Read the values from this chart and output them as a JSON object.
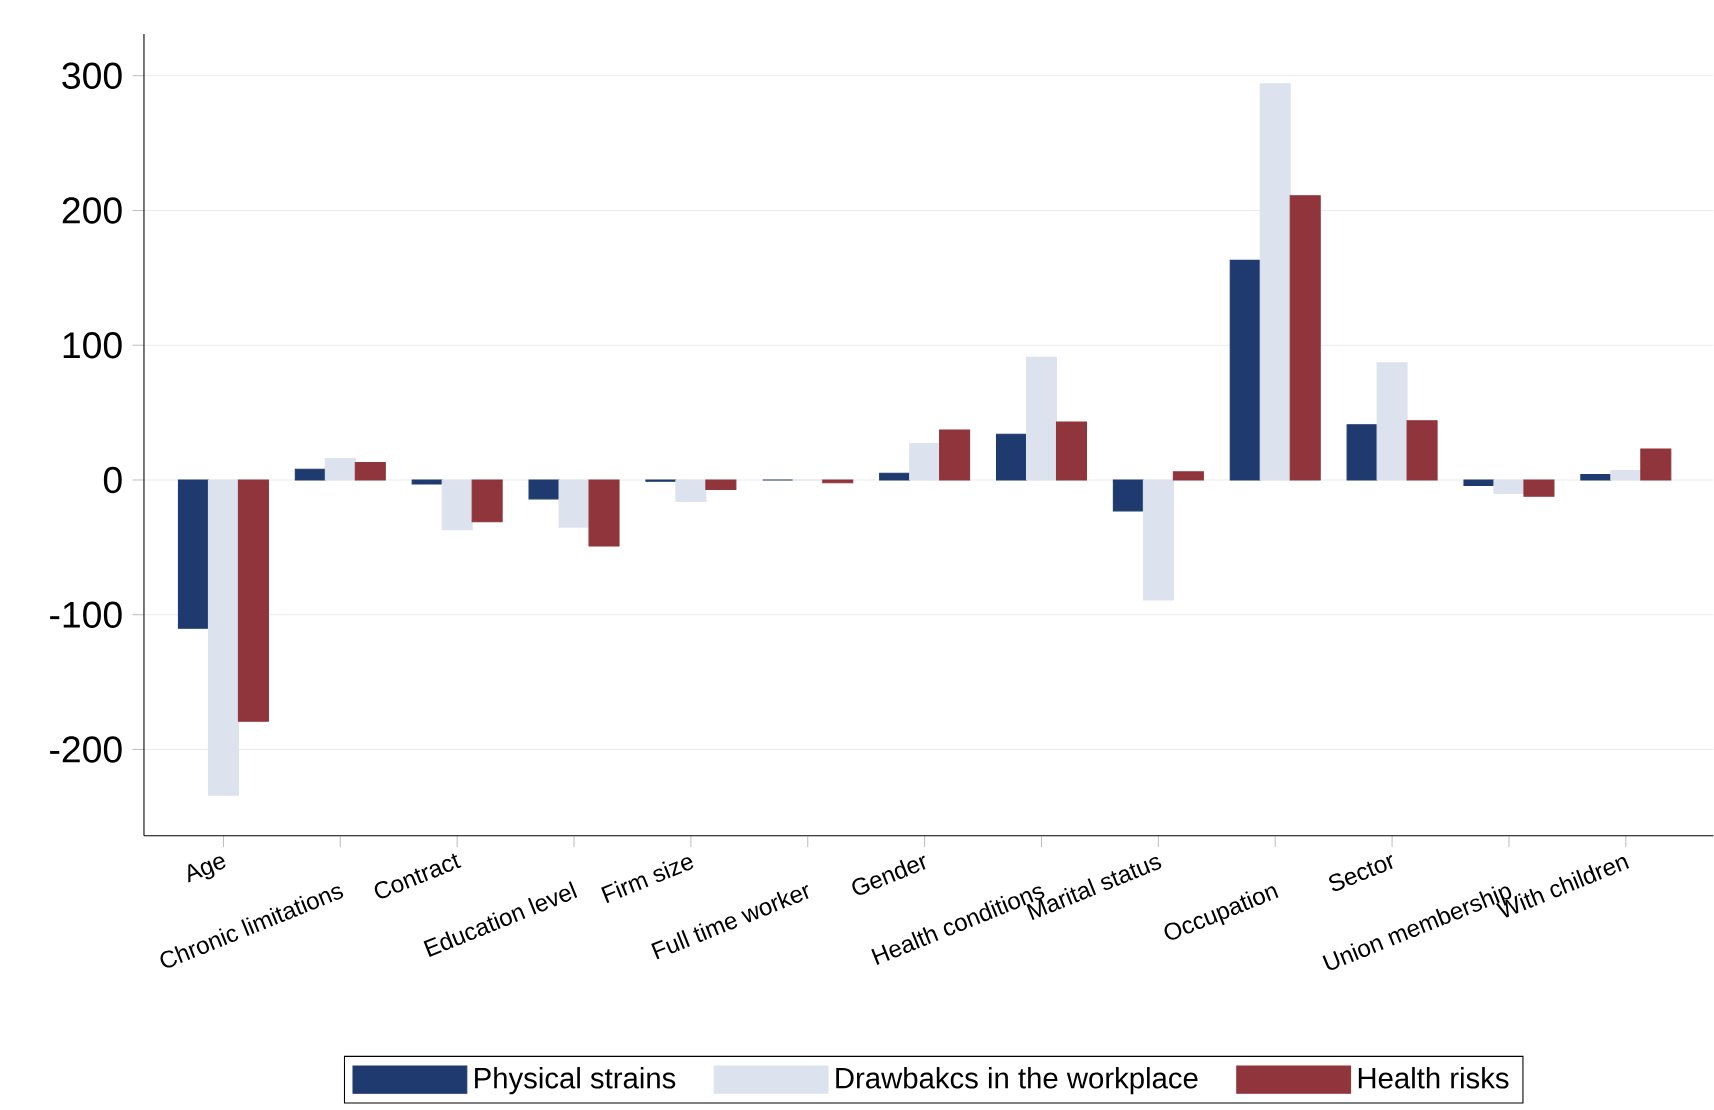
{
  "chart_data": {
    "type": "bar",
    "categories": [
      "Age",
      "Chronic limitations",
      "Contract",
      "Education level",
      "Firm size",
      "Full time worker",
      "Gender",
      "Health conditions",
      "Marital status",
      "Occupation",
      "Sector",
      "Union membership",
      "With children"
    ],
    "series": [
      {
        "name": "Physical strains",
        "color": "#1f3a6e",
        "values": [
          -110,
          8,
          -3,
          -14,
          -1,
          0,
          5,
          34,
          -23,
          163,
          41,
          -4,
          4
        ]
      },
      {
        "name": "Drawbakcs in the workplace",
        "color": "#dde3ee",
        "values": [
          -234,
          16,
          -37,
          -35,
          -16,
          0,
          27,
          91,
          -89,
          294,
          87,
          -10,
          7
        ]
      },
      {
        "name": "Health risks",
        "color": "#90353b",
        "values": [
          -179,
          13,
          -31,
          -49,
          -7,
          -2,
          37,
          43,
          6,
          211,
          44,
          -12,
          23
        ]
      }
    ],
    "ylim": [
      -264,
      331
    ],
    "yticks": [
      -200,
      -100,
      0,
      100,
      200,
      300
    ],
    "grid": "y",
    "legend": "bottom"
  }
}
